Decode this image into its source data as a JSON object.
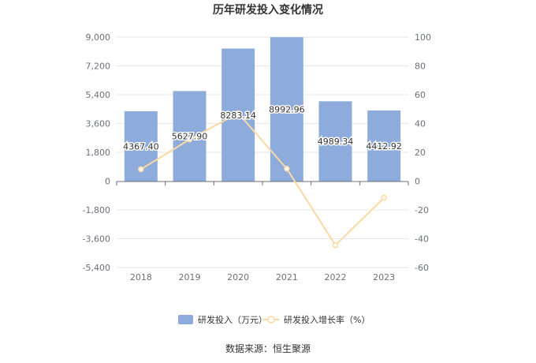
{
  "chart_data": {
    "type": "bar",
    "title": "历年研发投入变化情况",
    "categories": [
      "2018",
      "2019",
      "2020",
      "2021",
      "2022",
      "2023"
    ],
    "series": [
      {
        "name": "研发投入（万元）",
        "type": "bar",
        "axis": "left",
        "values": [
          4367.4,
          5627.9,
          8283.14,
          8992.96,
          4989.34,
          4412.92
        ],
        "labels": [
          "4367.40",
          "5627.90",
          "8283.14",
          "8992.96",
          "4989.34",
          "4412.92"
        ],
        "color": "#8eacdb"
      },
      {
        "name": "研发投入增长率（%）",
        "type": "line",
        "axis": "right",
        "values": [
          8.2,
          28.9,
          47.2,
          8.6,
          -44.5,
          -11.6
        ],
        "color": "#fcd9a2"
      }
    ],
    "y_left": {
      "min": -5400,
      "max": 9000,
      "ticks": [
        9000,
        7200,
        5400,
        3600,
        1800,
        0,
        -1800,
        -3600,
        -5400
      ],
      "tick_labels": [
        "9,000",
        "7,200",
        "5,400",
        "3,600",
        "1,800",
        "0",
        "-1,800",
        "-3,600",
        "-5,400"
      ]
    },
    "y_right": {
      "min": -60,
      "max": 100,
      "ticks": [
        100,
        80,
        60,
        40,
        20,
        0,
        -20,
        -40,
        -60
      ],
      "tick_labels": [
        "100",
        "80",
        "60",
        "40",
        "20",
        "0",
        "-20",
        "-40",
        "-60"
      ]
    },
    "grid": true,
    "legend_position": "bottom",
    "source": "数据来源：恒生聚源"
  }
}
